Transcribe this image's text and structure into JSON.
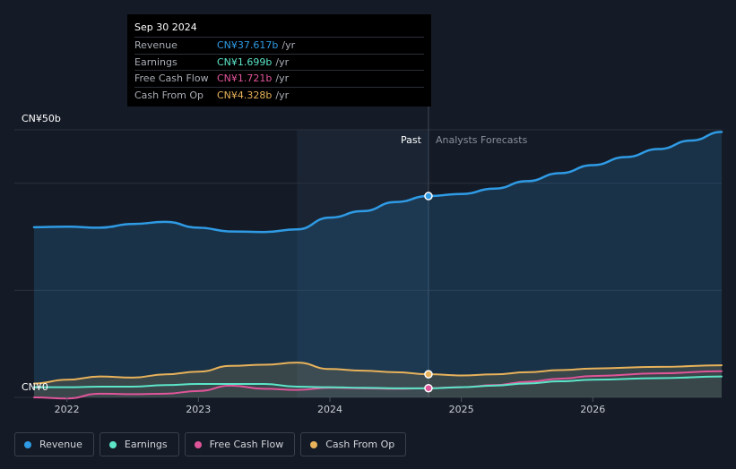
{
  "tooltip": {
    "date": "Sep 30 2024",
    "rows": [
      {
        "label": "Revenue",
        "value": "CN¥37.617b",
        "unit": "/yr",
        "color": "#2f9be5"
      },
      {
        "label": "Earnings",
        "value": "CN¥1.699b",
        "unit": "/yr",
        "color": "#5ce5c8"
      },
      {
        "label": "Free Cash Flow",
        "value": "CN¥1.721b",
        "unit": "/yr",
        "color": "#e0559a"
      },
      {
        "label": "Cash From Op",
        "value": "CN¥4.328b",
        "unit": "/yr",
        "color": "#e8b25a"
      }
    ]
  },
  "legend": [
    {
      "label": "Revenue",
      "color": "#2f9be5"
    },
    {
      "label": "Earnings",
      "color": "#5ce5c8"
    },
    {
      "label": "Free Cash Flow",
      "color": "#e0559a"
    },
    {
      "label": "Cash From Op",
      "color": "#e8b25a"
    }
  ],
  "chart_data": {
    "type": "line",
    "y_axis_labels": [
      "CN¥50b",
      "CN¥0"
    ],
    "ylim": [
      0,
      50
    ],
    "xlim": [
      2021.6,
      2026.98
    ],
    "x_ticks": [
      {
        "label": "2022",
        "value": 2022
      },
      {
        "label": "2023",
        "value": 2023
      },
      {
        "label": "2024",
        "value": 2024
      },
      {
        "label": "2025",
        "value": 2025
      },
      {
        "label": "2026",
        "value": 2026
      }
    ],
    "gridlines": [
      0,
      20,
      40,
      50
    ],
    "past_label": "Past",
    "forecast_label": "Analysts Forecasts",
    "divider_x": 2024.75,
    "past_region_start": 2023.75,
    "series": [
      {
        "name": "Revenue",
        "color": "#2f9be5",
        "width": 2.5,
        "area": true,
        "points": [
          [
            2021.75,
            31.8
          ],
          [
            2022.0,
            31.9
          ],
          [
            2022.25,
            31.7
          ],
          [
            2022.5,
            32.4
          ],
          [
            2022.75,
            32.8
          ],
          [
            2023.0,
            31.7
          ],
          [
            2023.25,
            31.0
          ],
          [
            2023.5,
            30.9
          ],
          [
            2023.75,
            31.4
          ],
          [
            2024.0,
            33.6
          ],
          [
            2024.25,
            34.8
          ],
          [
            2024.5,
            36.5
          ],
          [
            2024.75,
            37.617
          ],
          [
            2025.0,
            38.0
          ],
          [
            2025.25,
            39.0
          ],
          [
            2025.5,
            40.4
          ],
          [
            2025.75,
            41.9
          ],
          [
            2026.0,
            43.4
          ],
          [
            2026.25,
            44.9
          ],
          [
            2026.5,
            46.4
          ],
          [
            2026.75,
            48.0
          ],
          [
            2026.98,
            49.6
          ]
        ]
      },
      {
        "name": "Cash From Op",
        "color": "#e8b25a",
        "width": 2,
        "area": true,
        "points": [
          [
            2021.75,
            2.6
          ],
          [
            2022.0,
            3.3
          ],
          [
            2022.25,
            3.9
          ],
          [
            2022.5,
            3.7
          ],
          [
            2022.75,
            4.3
          ],
          [
            2023.0,
            4.8
          ],
          [
            2023.25,
            5.9
          ],
          [
            2023.5,
            6.1
          ],
          [
            2023.75,
            6.5
          ],
          [
            2024.0,
            5.3
          ],
          [
            2024.25,
            5.0
          ],
          [
            2024.5,
            4.7
          ],
          [
            2024.75,
            4.328
          ],
          [
            2025.0,
            4.1
          ],
          [
            2025.25,
            4.3
          ],
          [
            2025.5,
            4.7
          ],
          [
            2025.75,
            5.1
          ],
          [
            2026.0,
            5.4
          ],
          [
            2026.5,
            5.7
          ],
          [
            2026.98,
            6.0
          ]
        ]
      },
      {
        "name": "Free Cash Flow",
        "color": "#e0559a",
        "width": 2,
        "area": false,
        "points": [
          [
            2021.75,
            0.0
          ],
          [
            2022.0,
            -0.2
          ],
          [
            2022.25,
            0.7
          ],
          [
            2022.5,
            0.6
          ],
          [
            2022.75,
            0.7
          ],
          [
            2023.0,
            1.2
          ],
          [
            2023.25,
            2.2
          ],
          [
            2023.5,
            1.6
          ],
          [
            2023.75,
            1.4
          ],
          [
            2024.0,
            1.8
          ],
          [
            2024.25,
            1.7
          ],
          [
            2024.5,
            1.6
          ],
          [
            2024.75,
            1.721
          ],
          [
            2025.0,
            1.9
          ],
          [
            2025.25,
            2.3
          ],
          [
            2025.5,
            2.9
          ],
          [
            2025.75,
            3.5
          ],
          [
            2026.0,
            4.0
          ],
          [
            2026.5,
            4.5
          ],
          [
            2026.98,
            4.9
          ]
        ]
      },
      {
        "name": "Earnings",
        "color": "#5ce5c8",
        "width": 2,
        "area": false,
        "points": [
          [
            2021.75,
            1.9
          ],
          [
            2022.0,
            1.9
          ],
          [
            2022.25,
            2.0
          ],
          [
            2022.5,
            2.0
          ],
          [
            2022.75,
            2.3
          ],
          [
            2023.0,
            2.5
          ],
          [
            2023.25,
            2.5
          ],
          [
            2023.5,
            2.5
          ],
          [
            2023.75,
            2.0
          ],
          [
            2024.0,
            1.9
          ],
          [
            2024.25,
            1.8
          ],
          [
            2024.5,
            1.7
          ],
          [
            2024.75,
            1.699
          ],
          [
            2025.0,
            1.9
          ],
          [
            2025.25,
            2.2
          ],
          [
            2025.5,
            2.6
          ],
          [
            2025.75,
            3.0
          ],
          [
            2026.0,
            3.3
          ],
          [
            2026.5,
            3.6
          ],
          [
            2026.98,
            3.9
          ]
        ]
      }
    ]
  }
}
